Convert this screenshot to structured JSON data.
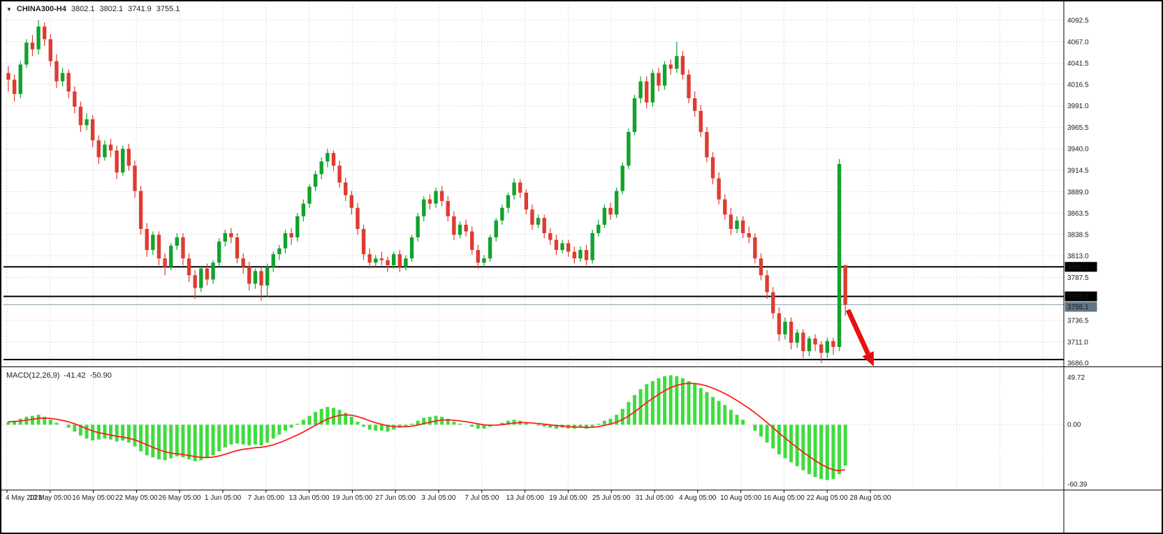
{
  "header": {
    "symbol_period": "CHINA300-H4",
    "open": "3802.1",
    "high": "3802.1",
    "low": "3741.9",
    "close": "3755.1"
  },
  "indicator": {
    "label": "MACD(12,26,9)",
    "main_value": "-41.42",
    "signal_value": "-50.90"
  },
  "colors": {
    "background": "#ffffff",
    "grid": "#c3c3c3",
    "bull": "#13a22d",
    "bear": "#de3c31",
    "macd_hist": "#3fdc3f",
    "macd_signal": "#ff1d1d",
    "level_line": "#000000",
    "current_price_line": "#8fa3af",
    "level_box_bg": "#000000",
    "current_price_box_bg": "#5f7583",
    "box_text": "#ffffff",
    "arrow": "#e81010",
    "axis_text": "#1b1b1b"
  },
  "price_axis": {
    "ticks": [
      {
        "label": "4092.5",
        "value": 4092.5
      },
      {
        "label": "4067.0",
        "value": 4067.0
      },
      {
        "label": "4041.5",
        "value": 4041.5
      },
      {
        "label": "4016.5",
        "value": 4016.5
      },
      {
        "label": "3991.0",
        "value": 3991.0
      },
      {
        "label": "3965.5",
        "value": 3965.5
      },
      {
        "label": "3940.0",
        "value": 3940.0
      },
      {
        "label": "3914.5",
        "value": 3914.5
      },
      {
        "label": "3889.0",
        "value": 3889.0
      },
      {
        "label": "3863.5",
        "value": 3863.5
      },
      {
        "label": "3838.5",
        "value": 3838.5
      },
      {
        "label": "3813.0",
        "value": 3813.0
      },
      {
        "label": "3787.5",
        "value": 3787.5
      },
      {
        "label": "3762.0",
        "value": 3762.0
      },
      {
        "label": "3736.5",
        "value": 3736.5
      },
      {
        "label": "3711.0",
        "value": 3711.0
      },
      {
        "label": "3686.0",
        "value": 3686.0
      }
    ],
    "boxes": [
      {
        "label": "3800.0",
        "value": 3800.0,
        "bg": "level_box_bg",
        "dy": 0
      },
      {
        "label": "3765.0",
        "value": 3765.0,
        "bg": "level_box_bg",
        "dy": 0
      },
      {
        "label": "3755.1",
        "value": 3755.1,
        "bg": "current_price_box_bg",
        "dy": 3
      }
    ]
  },
  "macd_axis": {
    "ticks": [
      {
        "label": "49.72",
        "value": 49.72
      },
      {
        "label": "0.00",
        "value": 0
      },
      {
        "label": "-60.39",
        "value": -60.39
      }
    ]
  },
  "time_axis": {
    "labels": [
      "4 May 2023",
      "10 May 05:00",
      "16 May 05:00",
      "22 May 05:00",
      "26 May 05:00",
      "1 Jun 05:00",
      "7 Jun 05:00",
      "13 Jun 05:00",
      "19 Jun 05:00",
      "27 Jun 05:00",
      "3 Jul 05:00",
      "7 Jul 05:00",
      "13 Jul 05:00",
      "19 Jul 05:00",
      "25 Jul 05:00",
      "31 Jul 05:00",
      "4 Aug 05:00",
      "10 Aug 05:00",
      "16 Aug 05:00",
      "22 Aug 05:00",
      "28 Aug 05:00"
    ]
  },
  "annotation": {
    "type": "arrow",
    "direction": "down-right"
  },
  "chart_data": [
    {
      "type": "candlestick",
      "title": "CHINA300-H4",
      "ylim": [
        3686.0,
        4092.5
      ],
      "x_range": [
        "4 May 2023",
        "28 Aug 2023"
      ],
      "levels": [
        3800.0,
        3765.0,
        3690.0
      ],
      "last_price": 3755.1,
      "ohlc": [
        [
          4030,
          4038,
          4008,
          4022
        ],
        [
          4022,
          4028,
          3996,
          4005
        ],
        [
          4005,
          4044,
          4000,
          4040
        ],
        [
          4040,
          4070,
          4036,
          4066
        ],
        [
          4066,
          4075,
          4050,
          4058
        ],
        [
          4058,
          4092.5,
          4052,
          4085
        ],
        [
          4085,
          4090,
          4062,
          4070
        ],
        [
          4070,
          4076,
          4038,
          4044
        ],
        [
          4044,
          4052,
          4012,
          4020
        ],
        [
          4020,
          4036,
          4014,
          4030
        ],
        [
          4030,
          4034,
          4000,
          4008
        ],
        [
          4008,
          4014,
          3982,
          3990
        ],
        [
          3990,
          3996,
          3960,
          3968
        ],
        [
          3968,
          3982,
          3962,
          3975
        ],
        [
          3975,
          3980,
          3942,
          3950
        ],
        [
          3950,
          3956,
          3922,
          3930
        ],
        [
          3930,
          3950,
          3926,
          3945
        ],
        [
          3945,
          3952,
          3930,
          3938
        ],
        [
          3938,
          3944,
          3904,
          3912
        ],
        [
          3912,
          3944,
          3908,
          3940
        ],
        [
          3940,
          3946,
          3914,
          3920
        ],
        [
          3920,
          3926,
          3882,
          3890
        ],
        [
          3890,
          3896,
          3838,
          3845
        ],
        [
          3845,
          3852,
          3812,
          3820
        ],
        [
          3820,
          3842,
          3814,
          3838
        ],
        [
          3838,
          3842,
          3802,
          3810
        ],
        [
          3810,
          3816,
          3790,
          3800
        ],
        [
          3800,
          3828,
          3796,
          3825
        ],
        [
          3825,
          3840,
          3820,
          3835
        ],
        [
          3835,
          3840,
          3802,
          3810
        ],
        [
          3810,
          3816,
          3782,
          3790
        ],
        [
          3790,
          3796,
          3762,
          3775
        ],
        [
          3775,
          3800,
          3770,
          3798
        ],
        [
          3798,
          3804,
          3778,
          3785
        ],
        [
          3785,
          3808,
          3780,
          3805
        ],
        [
          3805,
          3834,
          3800,
          3830
        ],
        [
          3830,
          3844,
          3824,
          3840
        ],
        [
          3840,
          3846,
          3828,
          3835
        ],
        [
          3835,
          3840,
          3804,
          3810
        ],
        [
          3810,
          3816,
          3792,
          3800
        ],
        [
          3800,
          3806,
          3772,
          3780
        ],
        [
          3780,
          3798,
          3774,
          3795
        ],
        [
          3795,
          3800,
          3760,
          3778
        ],
        [
          3778,
          3804,
          3764,
          3800
        ],
        [
          3800,
          3818,
          3794,
          3815
        ],
        [
          3815,
          3826,
          3808,
          3822
        ],
        [
          3822,
          3844,
          3816,
          3840
        ],
        [
          3840,
          3846,
          3826,
          3835
        ],
        [
          3835,
          3864,
          3830,
          3860
        ],
        [
          3860,
          3880,
          3854,
          3875
        ],
        [
          3875,
          3898,
          3870,
          3895
        ],
        [
          3895,
          3914,
          3890,
          3910
        ],
        [
          3910,
          3930,
          3904,
          3925
        ],
        [
          3925,
          3940,
          3918,
          3935
        ],
        [
          3935,
          3938,
          3914,
          3920
        ],
        [
          3920,
          3926,
          3894,
          3900
        ],
        [
          3900,
          3906,
          3878,
          3885
        ],
        [
          3885,
          3890,
          3862,
          3870
        ],
        [
          3870,
          3876,
          3838,
          3845
        ],
        [
          3845,
          3850,
          3808,
          3815
        ],
        [
          3815,
          3822,
          3798,
          3805
        ],
        [
          3805,
          3814,
          3800,
          3810
        ],
        [
          3810,
          3818,
          3802,
          3808
        ],
        [
          3808,
          3812,
          3794,
          3802
        ],
        [
          3802,
          3818,
          3798,
          3815
        ],
        [
          3815,
          3820,
          3794,
          3800
        ],
        [
          3800,
          3814,
          3796,
          3810
        ],
        [
          3810,
          3838,
          3806,
          3835
        ],
        [
          3835,
          3864,
          3830,
          3860
        ],
        [
          3860,
          3884,
          3854,
          3880
        ],
        [
          3880,
          3886,
          3868,
          3875
        ],
        [
          3875,
          3894,
          3870,
          3890
        ],
        [
          3890,
          3896,
          3872,
          3878
        ],
        [
          3878,
          3884,
          3854,
          3860
        ],
        [
          3860,
          3866,
          3832,
          3838
        ],
        [
          3838,
          3854,
          3834,
          3850
        ],
        [
          3850,
          3856,
          3836,
          3842
        ],
        [
          3842,
          3848,
          3814,
          3820
        ],
        [
          3820,
          3826,
          3798,
          3805
        ],
        [
          3805,
          3814,
          3800,
          3810
        ],
        [
          3810,
          3838,
          3806,
          3835
        ],
        [
          3835,
          3858,
          3830,
          3855
        ],
        [
          3855,
          3874,
          3850,
          3870
        ],
        [
          3870,
          3888,
          3864,
          3885
        ],
        [
          3885,
          3905,
          3880,
          3900
        ],
        [
          3900,
          3904,
          3882,
          3888
        ],
        [
          3888,
          3892,
          3862,
          3868
        ],
        [
          3868,
          3874,
          3844,
          3850
        ],
        [
          3850,
          3862,
          3846,
          3858
        ],
        [
          3858,
          3862,
          3834,
          3840
        ],
        [
          3840,
          3846,
          3826,
          3832
        ],
        [
          3832,
          3838,
          3814,
          3820
        ],
        [
          3820,
          3832,
          3816,
          3828
        ],
        [
          3828,
          3832,
          3812,
          3818
        ],
        [
          3818,
          3824,
          3804,
          3810
        ],
        [
          3810,
          3824,
          3806,
          3820
        ],
        [
          3820,
          3826,
          3802,
          3808
        ],
        [
          3808,
          3844,
          3804,
          3840
        ],
        [
          3840,
          3856,
          3836,
          3850
        ],
        [
          3850,
          3874,
          3846,
          3870
        ],
        [
          3870,
          3876,
          3856,
          3862
        ],
        [
          3862,
          3894,
          3858,
          3890
        ],
        [
          3890,
          3924,
          3886,
          3920
        ],
        [
          3920,
          3964,
          3916,
          3960
        ],
        [
          3960,
          4004,
          3956,
          4000
        ],
        [
          4000,
          4026,
          3994,
          4020
        ],
        [
          4020,
          4026,
          3988,
          3995
        ],
        [
          3995,
          4034,
          3990,
          4030
        ],
        [
          4030,
          4036,
          4008,
          4015
        ],
        [
          4015,
          4044,
          4010,
          4040
        ],
        [
          4040,
          4046,
          4028,
          4035
        ],
        [
          4035,
          4067,
          4030,
          4050
        ],
        [
          4050,
          4056,
          4022,
          4028
        ],
        [
          4028,
          4034,
          3994,
          4000
        ],
        [
          4000,
          4008,
          3978,
          3985
        ],
        [
          3985,
          3992,
          3954,
          3960
        ],
        [
          3960,
          3966,
          3924,
          3930
        ],
        [
          3930,
          3936,
          3898,
          3905
        ],
        [
          3905,
          3912,
          3874,
          3880
        ],
        [
          3880,
          3886,
          3856,
          3862
        ],
        [
          3862,
          3870,
          3838,
          3845
        ],
        [
          3845,
          3860,
          3840,
          3855
        ],
        [
          3855,
          3860,
          3834,
          3840
        ],
        [
          3840,
          3848,
          3828,
          3835
        ],
        [
          3835,
          3840,
          3804,
          3810
        ],
        [
          3810,
          3816,
          3784,
          3790
        ],
        [
          3790,
          3796,
          3762,
          3770
        ],
        [
          3770,
          3776,
          3738,
          3745
        ],
        [
          3745,
          3752,
          3712,
          3720
        ],
        [
          3720,
          3740,
          3714,
          3735
        ],
        [
          3735,
          3740,
          3702,
          3710
        ],
        [
          3710,
          3726,
          3704,
          3722
        ],
        [
          3722,
          3726,
          3692,
          3700
        ],
        [
          3700,
          3718,
          3694,
          3715
        ],
        [
          3715,
          3720,
          3700,
          3708
        ],
        [
          3708,
          3712,
          3686,
          3698
        ],
        [
          3698,
          3716,
          3692,
          3712
        ],
        [
          3712,
          3716,
          3696,
          3705
        ],
        [
          3705,
          3928,
          3700,
          3922
        ],
        [
          3802.1,
          3802.1,
          3741.9,
          3755.1
        ]
      ]
    },
    {
      "type": "bar",
      "name": "MACD histogram",
      "signal_line": "red EMA(9) of histogram",
      "ylim": [
        -60.39,
        49.72
      ],
      "values": [
        3,
        4,
        6,
        8,
        9,
        10,
        8,
        5,
        2,
        0,
        -3,
        -7,
        -11,
        -14,
        -16,
        -15,
        -14,
        -15,
        -17,
        -16,
        -18,
        -22,
        -27,
        -31,
        -33,
        -35,
        -36,
        -34,
        -32,
        -33,
        -35,
        -37,
        -36,
        -34,
        -31,
        -27,
        -23,
        -20,
        -19,
        -20,
        -21,
        -20,
        -21,
        -18,
        -14,
        -10,
        -6,
        -3,
        1,
        5,
        9,
        13,
        16,
        18,
        17,
        15,
        12,
        8,
        3,
        -2,
        -5,
        -6,
        -6,
        -7,
        -5,
        -3,
        -2,
        1,
        4,
        7,
        8,
        9,
        8,
        6,
        3,
        1,
        0,
        -2,
        -4,
        -4,
        -2,
        0,
        2,
        4,
        5,
        4,
        2,
        0,
        -1,
        -2,
        -3,
        -4,
        -3,
        -4,
        -4,
        -3,
        -4,
        -2,
        1,
        4,
        6,
        10,
        16,
        23,
        30,
        36,
        41,
        44,
        47,
        49,
        50,
        49,
        47,
        44,
        41,
        37,
        33,
        28,
        24,
        20,
        15,
        10,
        5,
        0,
        -6,
        -12,
        -18,
        -24,
        -30,
        -34,
        -38,
        -42,
        -46,
        -50,
        -53,
        -55,
        -56,
        -55,
        -50,
        -41.42
      ]
    }
  ]
}
